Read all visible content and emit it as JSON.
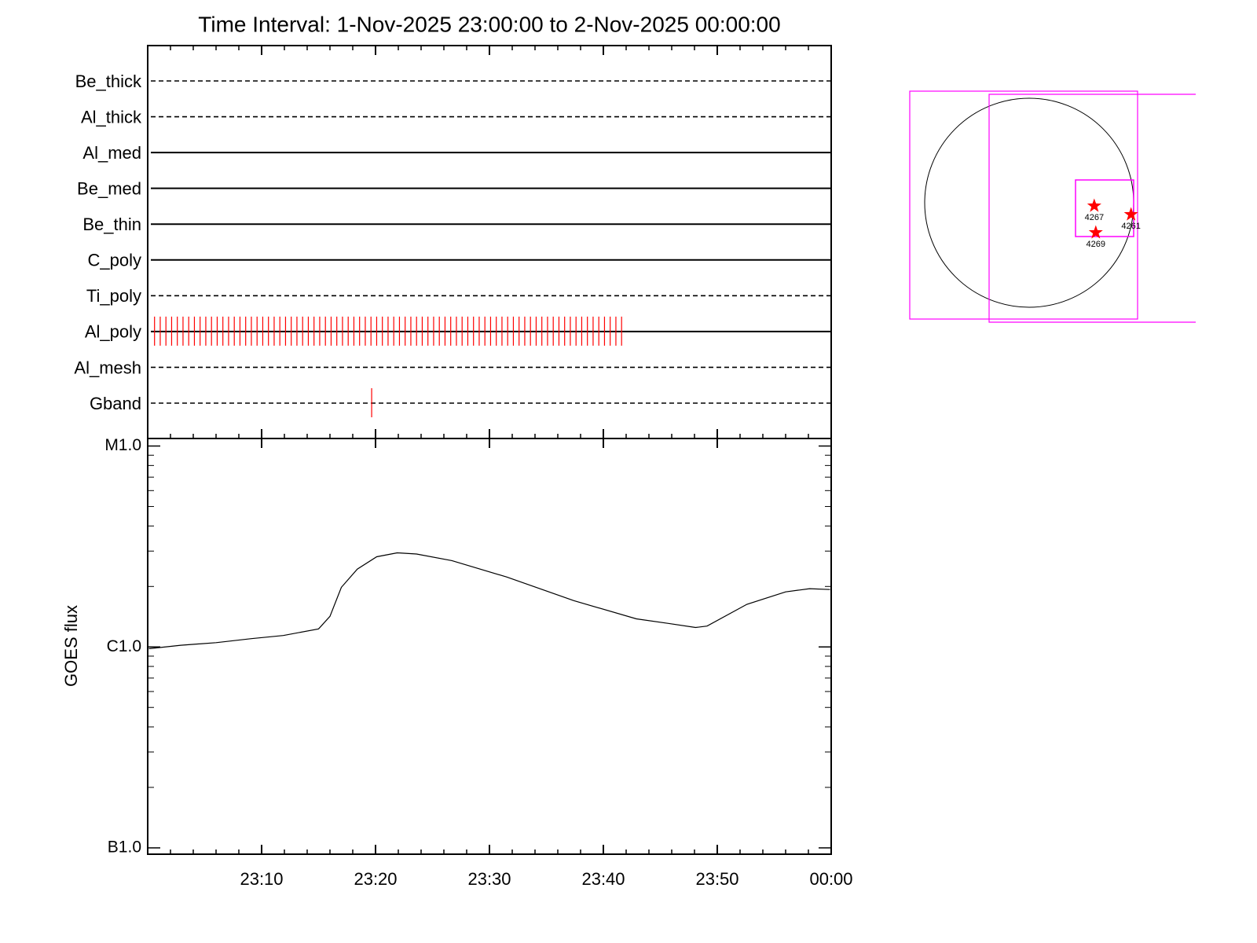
{
  "chart_data": [
    {
      "type": "timeline",
      "title": "Time Interval:  1-Nov-2025 23:00:00 to  2-Nov-2025 00:00:00",
      "xlim": [
        0,
        60
      ],
      "event_color": "#ff0000",
      "rows": [
        {
          "label": "Be_thick",
          "style": "dashed",
          "events": []
        },
        {
          "label": "Al_thick",
          "style": "dashed",
          "events": []
        },
        {
          "label": "Al_med",
          "style": "solid",
          "events": []
        },
        {
          "label": "Be_med",
          "style": "solid",
          "events": []
        },
        {
          "label": "Be_thin",
          "style": "solid",
          "events": []
        },
        {
          "label": "C_poly",
          "style": "solid",
          "events": []
        },
        {
          "label": "Ti_poly",
          "style": "dashed",
          "events": []
        },
        {
          "label": "Al_poly",
          "style": "solid",
          "events": [
            0.6,
            1.1,
            1.6,
            2.1,
            2.6,
            3.1,
            3.6,
            4.1,
            4.6,
            5.1,
            5.6,
            6.1,
            6.6,
            7.1,
            7.6,
            8.1,
            8.6,
            9.1,
            9.6,
            10.1,
            10.6,
            11.1,
            11.6,
            12.1,
            12.6,
            13.1,
            13.6,
            14.1,
            14.6,
            15.1,
            15.6,
            16.1,
            16.6,
            17.1,
            17.6,
            18.1,
            18.6,
            19.1,
            19.6,
            20.1,
            20.6,
            21.1,
            21.6,
            22.1,
            22.6,
            23.1,
            23.6,
            24.1,
            24.6,
            25.1,
            25.6,
            26.1,
            26.6,
            27.1,
            27.6,
            28.1,
            28.6,
            29.1,
            29.6,
            30.1,
            30.6,
            31.1,
            31.6,
            32.1,
            32.6,
            33.1,
            33.6,
            34.1,
            34.6,
            35.1,
            35.6,
            36.1,
            36.6,
            37.1,
            37.6,
            38.1,
            38.6,
            39.1,
            39.6,
            40.1,
            40.6,
            41.1,
            41.6
          ]
        },
        {
          "label": "Al_mesh",
          "style": "dashed",
          "events": []
        },
        {
          "label": "Gband",
          "style": "dashed",
          "events": [
            19.66
          ]
        }
      ]
    },
    {
      "type": "line",
      "ylabel": "GOES flux",
      "color": "#000000",
      "log_y": true,
      "xlim": [
        0,
        60
      ],
      "ylim": [
        9.3e-08,
        1.09e-05
      ],
      "xticks": [
        {
          "value": 10,
          "label": "23:10"
        },
        {
          "value": 20,
          "label": "23:20"
        },
        {
          "value": 30,
          "label": "23:30"
        },
        {
          "value": 40,
          "label": "23:40"
        },
        {
          "value": 50,
          "label": "23:50"
        },
        {
          "value": 60,
          "label": "00:00"
        }
      ],
      "yticks": [
        {
          "value": 1e-07,
          "label": "B1.0"
        },
        {
          "value": 1e-06,
          "label": "C1.0"
        },
        {
          "value": 1e-05,
          "label": "M1.0"
        }
      ],
      "x": [
        0.1,
        2.9,
        6.0,
        9.1,
        11.9,
        15.0,
        16.0,
        17.0,
        18.4,
        20.1,
        21.9,
        23.6,
        26.7,
        31.5,
        37.4,
        42.9,
        45.7,
        48.1,
        49.1,
        52.6,
        56.0,
        58.1,
        59.9
      ],
      "values": [
        9.8e-07,
        1.02e-06,
        1.05e-06,
        1.1e-06,
        1.14e-06,
        1.23e-06,
        1.42e-06,
        1.98e-06,
        2.44e-06,
        2.81e-06,
        2.94e-06,
        2.9e-06,
        2.69e-06,
        2.23e-06,
        1.7e-06,
        1.38e-06,
        1.31e-06,
        1.25e-06,
        1.27e-06,
        1.63e-06,
        1.88e-06,
        1.95e-06,
        1.93e-06
      ]
    },
    {
      "type": "map",
      "color": "#ff0000",
      "regions": [
        {
          "label": "4267",
          "x": 598,
          "y": -29
        },
        {
          "label": "4261",
          "x": 936,
          "y": -108
        },
        {
          "label": "4269",
          "x": 612,
          "y": -274
        }
      ]
    }
  ]
}
